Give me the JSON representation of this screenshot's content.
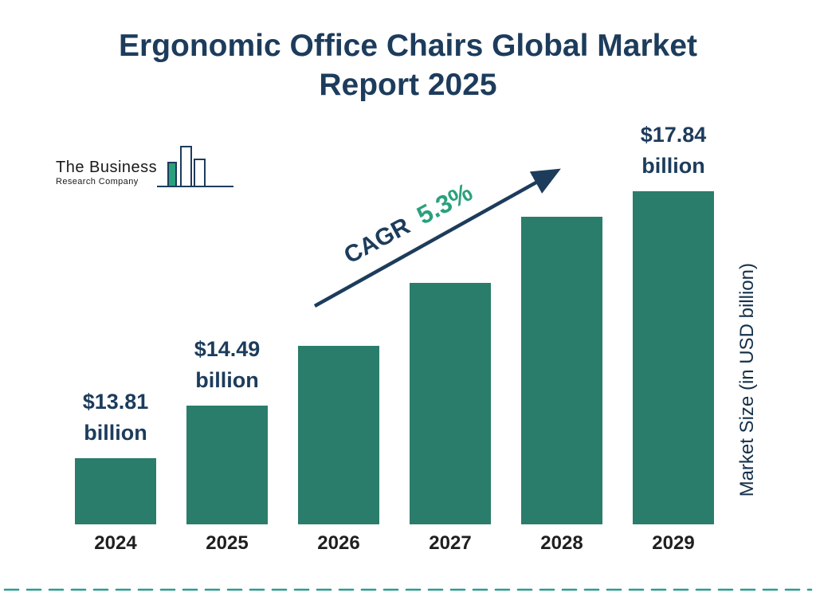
{
  "title": "Ergonomic Office Chairs Global Market Report 2025",
  "logo": {
    "line1": "The Business",
    "line2": "Research Company"
  },
  "cagr": {
    "label": "CAGR",
    "value": "5.3%"
  },
  "y_axis_label": "Market Size (in USD billion)",
  "colors": {
    "bar": "#2a7d6b",
    "navy": "#1d3c5c",
    "green": "#2aa17c",
    "dashed_line": "#2a9d8f"
  },
  "chart_data": {
    "type": "bar",
    "title": "Ergonomic Office Chairs Global Market Report 2025",
    "categories": [
      "2024",
      "2025",
      "2026",
      "2027",
      "2028",
      "2029"
    ],
    "values": [
      13.81,
      14.49,
      15.26,
      16.07,
      16.92,
      17.84
    ],
    "value_labels": [
      "$13.81 billion",
      "$14.49 billion",
      null,
      null,
      null,
      "$17.84 billion"
    ],
    "cagr": "5.3%",
    "ylabel": "Market Size (in USD billion)",
    "xlabel": "",
    "legend": "none",
    "grid": "off",
    "bar_color": "#2a7d6b"
  }
}
